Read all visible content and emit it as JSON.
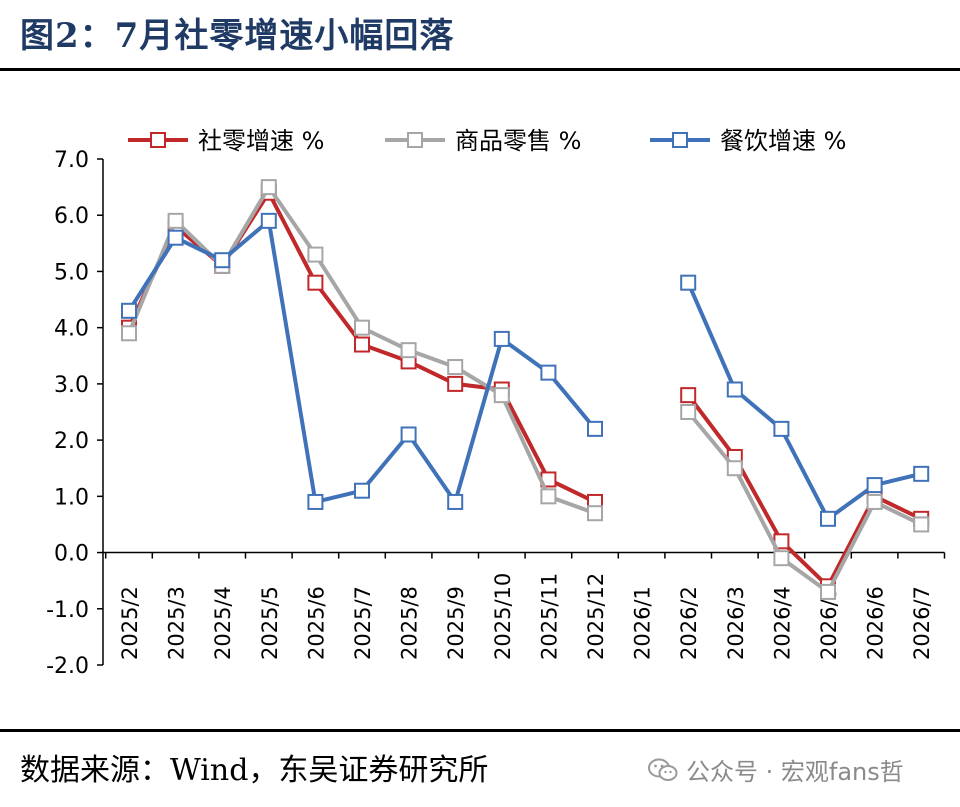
{
  "title": "图2：7月社零增速小幅回落",
  "source": "数据来源：Wind，东吴证券研究所",
  "watermark": "公众号 · 宏观fans哲",
  "chart_data": {
    "type": "line",
    "categories": [
      "2025/2",
      "2025/3",
      "2025/4",
      "2025/5",
      "2025/6",
      "2025/7",
      "2025/8",
      "2025/9",
      "2025/10",
      "2025/11",
      "2025/12",
      "2026/1",
      "2026/2",
      "2026/3",
      "2026/4",
      "2026/5",
      "2026/6",
      "2026/7"
    ],
    "ylim": [
      -2.0,
      7.0
    ],
    "yticks": [
      "7.0",
      "6.0",
      "5.0",
      "4.0",
      "3.0",
      "2.0",
      "1.0",
      "0.0",
      "-1.0",
      "-2.0"
    ],
    "legend_position": "top",
    "grid": false,
    "series": [
      {
        "name": "社零增速 %",
        "color": "#c0282a",
        "values": [
          4.0,
          5.8,
          5.1,
          6.4,
          4.8,
          3.7,
          3.4,
          3.0,
          2.9,
          1.3,
          0.9,
          null,
          2.8,
          1.7,
          0.2,
          -0.6,
          1.0,
          0.6
        ]
      },
      {
        "name": "商品零售 %",
        "color": "#a6a6a6",
        "values": [
          3.9,
          5.9,
          5.1,
          6.5,
          5.3,
          4.0,
          3.6,
          3.3,
          2.8,
          1.0,
          0.7,
          null,
          2.5,
          1.5,
          -0.1,
          -0.7,
          0.9,
          0.5
        ]
      },
      {
        "name": "餐饮增速 %",
        "color": "#3f72b8",
        "values": [
          4.3,
          5.6,
          5.2,
          5.9,
          0.9,
          1.1,
          2.1,
          0.9,
          3.8,
          3.2,
          2.2,
          null,
          4.8,
          2.9,
          2.2,
          0.6,
          1.2,
          1.4
        ]
      }
    ]
  }
}
